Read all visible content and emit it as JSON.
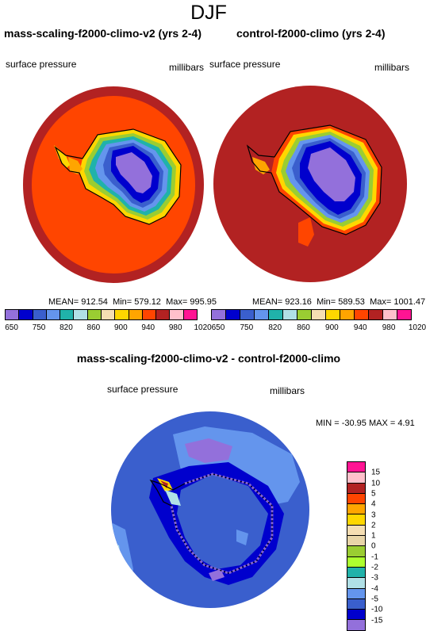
{
  "title": "DJF",
  "panels": [
    {
      "title": "mass-scaling-f2000-climo-v2 (yrs 2-4)",
      "variable": "surface pressure",
      "units": "millibars",
      "stats": {
        "mean_label": "MEAN=",
        "mean": "912.54",
        "min_label": "Min=",
        "min": "579.12",
        "max_label": "Max=",
        "max": "995.95"
      }
    },
    {
      "title": "control-f2000-climo (yrs 2-4)",
      "variable": "surface pressure",
      "units": "millibars",
      "stats": {
        "mean_label": "MEAN=",
        "mean": "923.16",
        "min_label": "Min=",
        "min": "589.53",
        "max_label": "Max=",
        "max": "1001.47"
      }
    }
  ],
  "shared_colorbar": {
    "labels": [
      "650",
      "750",
      "820",
      "860",
      "900",
      "940",
      "980",
      "1020"
    ],
    "colors": [
      "#9370db",
      "#0000cd",
      "#3a5fcd",
      "#6495ed",
      "#20b2aa",
      "#b0e0e6",
      "#9acd32",
      "#f5deb3",
      "#ffd700",
      "#ffa500",
      "#ff4500",
      "#b22222",
      "#ffc0cb",
      "#ff1493"
    ]
  },
  "diff_panel": {
    "title": "mass-scaling-f2000-climo-v2 - control-f2000-climo",
    "variable": "surface pressure",
    "units": "millibars",
    "minmax": "MIN = -30.95  MAX =   4.91",
    "colorbar": {
      "labels": [
        "15",
        "10",
        "5",
        "4",
        "3",
        "2",
        "1",
        "0",
        "-1",
        "-2",
        "-3",
        "-4",
        "-5",
        "-10",
        "-15"
      ],
      "colors": [
        "#ff1493",
        "#ffc0cb",
        "#b22222",
        "#ff4500",
        "#ffa500",
        "#ffd700",
        "#f5deb3",
        "#e8d5a8",
        "#9acd32",
        "#adff2f",
        "#20b2aa",
        "#b0e0e6",
        "#6495ed",
        "#3a5fcd",
        "#0000cd",
        "#9370db"
      ]
    }
  }
}
